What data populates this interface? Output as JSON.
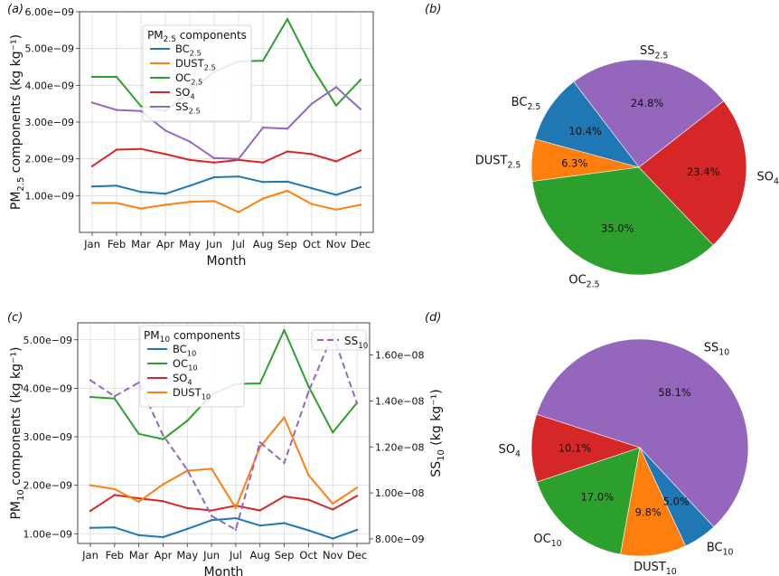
{
  "colors": {
    "blue": "#1f77b4",
    "orange": "#ff7f0e",
    "green": "#2ca02c",
    "red": "#d62728",
    "purple": "#9467bd"
  },
  "chart_data": [
    {
      "panel": "(a)",
      "type": "line",
      "xlabel": "Month",
      "ylabel": "PM2.5 components (kg kg⁻¹)",
      "categories": [
        "Jan",
        "Feb",
        "Mar",
        "Apr",
        "May",
        "Jun",
        "Jul",
        "Aug",
        "Sep",
        "Oct",
        "Nov",
        "Dec"
      ],
      "ylim": [
        0.0,
        6e-09
      ],
      "yticks": [
        1e-09,
        2e-09,
        3e-09,
        4e-09,
        5e-09,
        6e-09
      ],
      "ytick_labels": [
        "1.00e−09",
        "2.00e−09",
        "3.00e−09",
        "4.00e−09",
        "5.00e−09",
        "6.00e−09"
      ],
      "grid": true,
      "legend": {
        "title": "PM2.5 components",
        "position": "upper-center"
      },
      "series": [
        {
          "name": "BC2.5",
          "color": "#1f77b4",
          "values": [
            1.25e-09,
            1.27e-09,
            1.1e-09,
            1.05e-09,
            1.27e-09,
            1.5e-09,
            1.52e-09,
            1.37e-09,
            1.38e-09,
            1.2e-09,
            1.02e-09,
            1.23e-09
          ]
        },
        {
          "name": "DUST2.5",
          "color": "#ff7f0e",
          "values": [
            8e-10,
            8e-10,
            6.5e-10,
            7.5e-10,
            8.3e-10,
            8.5e-10,
            5.5e-10,
            9.2e-10,
            1.13e-09,
            7.7e-10,
            6.2e-10,
            7.5e-10
          ]
        },
        {
          "name": "OC2.5",
          "color": "#2ca02c",
          "values": [
            4.23e-09,
            4.23e-09,
            3.43e-09,
            3.3e-09,
            3.83e-09,
            4.37e-09,
            4.65e-09,
            4.67e-09,
            5.8e-09,
            4.5e-09,
            3.45e-09,
            4.15e-09
          ]
        },
        {
          "name": "SO4",
          "color": "#d62728",
          "values": [
            1.8e-09,
            2.25e-09,
            2.27e-09,
            2.13e-09,
            1.97e-09,
            1.9e-09,
            1.97e-09,
            1.9e-09,
            2.2e-09,
            2.13e-09,
            1.93e-09,
            2.23e-09
          ]
        },
        {
          "name": "SS2.5",
          "color": "#9467bd",
          "values": [
            3.53e-09,
            3.33e-09,
            3.3e-09,
            2.77e-09,
            2.47e-09,
            2.02e-09,
            2e-09,
            2.85e-09,
            2.82e-09,
            3.5e-09,
            3.95e-09,
            3.35e-09
          ]
        }
      ]
    },
    {
      "panel": "(b)",
      "type": "pie",
      "slices": [
        {
          "label": "SS2.5",
          "value": 24.8,
          "pct": "24.8%",
          "color": "#9467bd"
        },
        {
          "label": "BC2.5",
          "value": 10.4,
          "pct": "10.4%",
          "color": "#1f77b4"
        },
        {
          "label": "DUST2.5",
          "value": 6.3,
          "pct": "6.3%",
          "color": "#ff7f0e"
        },
        {
          "label": "OC2.5",
          "value": 35.0,
          "pct": "35.0%",
          "color": "#2ca02c"
        },
        {
          "label": "SO4",
          "value": 23.4,
          "pct": "23.4%",
          "color": "#d62728"
        }
      ]
    },
    {
      "panel": "(c)",
      "type": "line",
      "xlabel": "Month",
      "ylabel": "PM10 components (kg kg⁻¹)",
      "ylabel_right": "SS10 (kg kg⁻¹)",
      "categories": [
        "Jan",
        "Feb",
        "Mar",
        "Apr",
        "May",
        "Jun",
        "Jul",
        "Aug",
        "Sep",
        "Oct",
        "Nov",
        "Dec"
      ],
      "ylim": [
        8e-10,
        5.35e-09
      ],
      "yticks": [
        1e-09,
        2e-09,
        3e-09,
        4e-09,
        5e-09
      ],
      "ytick_labels": [
        "1.00e−09",
        "2.00e−09",
        "3.00e−09",
        "4.00e−09",
        "5.00e−09"
      ],
      "ylim_right": [
        7.8e-09,
        1.74e-08
      ],
      "yticks_right": [
        8e-09,
        1e-08,
        1.2e-08,
        1.4e-08,
        1.6e-08
      ],
      "ytick_labels_right": [
        "8.00e−09",
        "1.00e−08",
        "1.20e−08",
        "1.40e−08",
        "1.60e−08"
      ],
      "grid": true,
      "legend": {
        "title": "PM10 components",
        "position": "upper-left"
      },
      "legend_right": {
        "position": "upper-right"
      },
      "series": [
        {
          "name": "BC10",
          "color": "#1f77b4",
          "values": [
            1.12e-09,
            1.13e-09,
            9.7e-10,
            9.3e-10,
            1.1e-09,
            1.28e-09,
            1.32e-09,
            1.17e-09,
            1.22e-09,
            1.07e-09,
            9e-10,
            1.08e-09
          ]
        },
        {
          "name": "OC10",
          "color": "#2ca02c",
          "values": [
            3.82e-09,
            3.79e-09,
            3.06e-09,
            2.95e-09,
            3.33e-09,
            3.87e-09,
            4.09e-09,
            4.1e-09,
            5.2e-09,
            4.04e-09,
            3.09e-09,
            3.7e-09
          ]
        },
        {
          "name": "SO4",
          "color": "#d62728",
          "values": [
            1.47e-09,
            1.8e-09,
            1.73e-09,
            1.67e-09,
            1.53e-09,
            1.48e-09,
            1.58e-09,
            1.48e-09,
            1.77e-09,
            1.7e-09,
            1.5e-09,
            1.78e-09
          ]
        },
        {
          "name": "DUST10",
          "color": "#ff7f0e",
          "values": [
            2e-09,
            1.92e-09,
            1.66e-09,
            2.02e-09,
            2.3e-09,
            2.34e-09,
            1.53e-09,
            2.79e-09,
            3.4e-09,
            2.21e-09,
            1.62e-09,
            1.95e-09
          ]
        },
        {
          "name": "SS10",
          "color": "#9467bd",
          "axis": "right",
          "dashed": true,
          "values": [
            1.49e-08,
            1.42e-08,
            1.48e-08,
            1.25e-08,
            1.1e-08,
            9e-09,
            8.4e-09,
            1.22e-08,
            1.13e-08,
            1.44e-08,
            1.69e-08,
            1.39e-08
          ]
        }
      ]
    },
    {
      "panel": "(d)",
      "type": "pie",
      "slices": [
        {
          "label": "SS10",
          "value": 58.1,
          "pct": "58.1%",
          "color": "#9467bd"
        },
        {
          "label": "SO4",
          "value": 10.1,
          "pct": "10.1%",
          "color": "#d62728"
        },
        {
          "label": "OC10",
          "value": 17.0,
          "pct": "17.0%",
          "color": "#2ca02c"
        },
        {
          "label": "DUST10",
          "value": 9.8,
          "pct": "9.8%",
          "color": "#ff7f0e"
        },
        {
          "label": "BC10",
          "value": 5.0,
          "pct": "5.0%",
          "color": "#1f77b4"
        }
      ]
    }
  ]
}
